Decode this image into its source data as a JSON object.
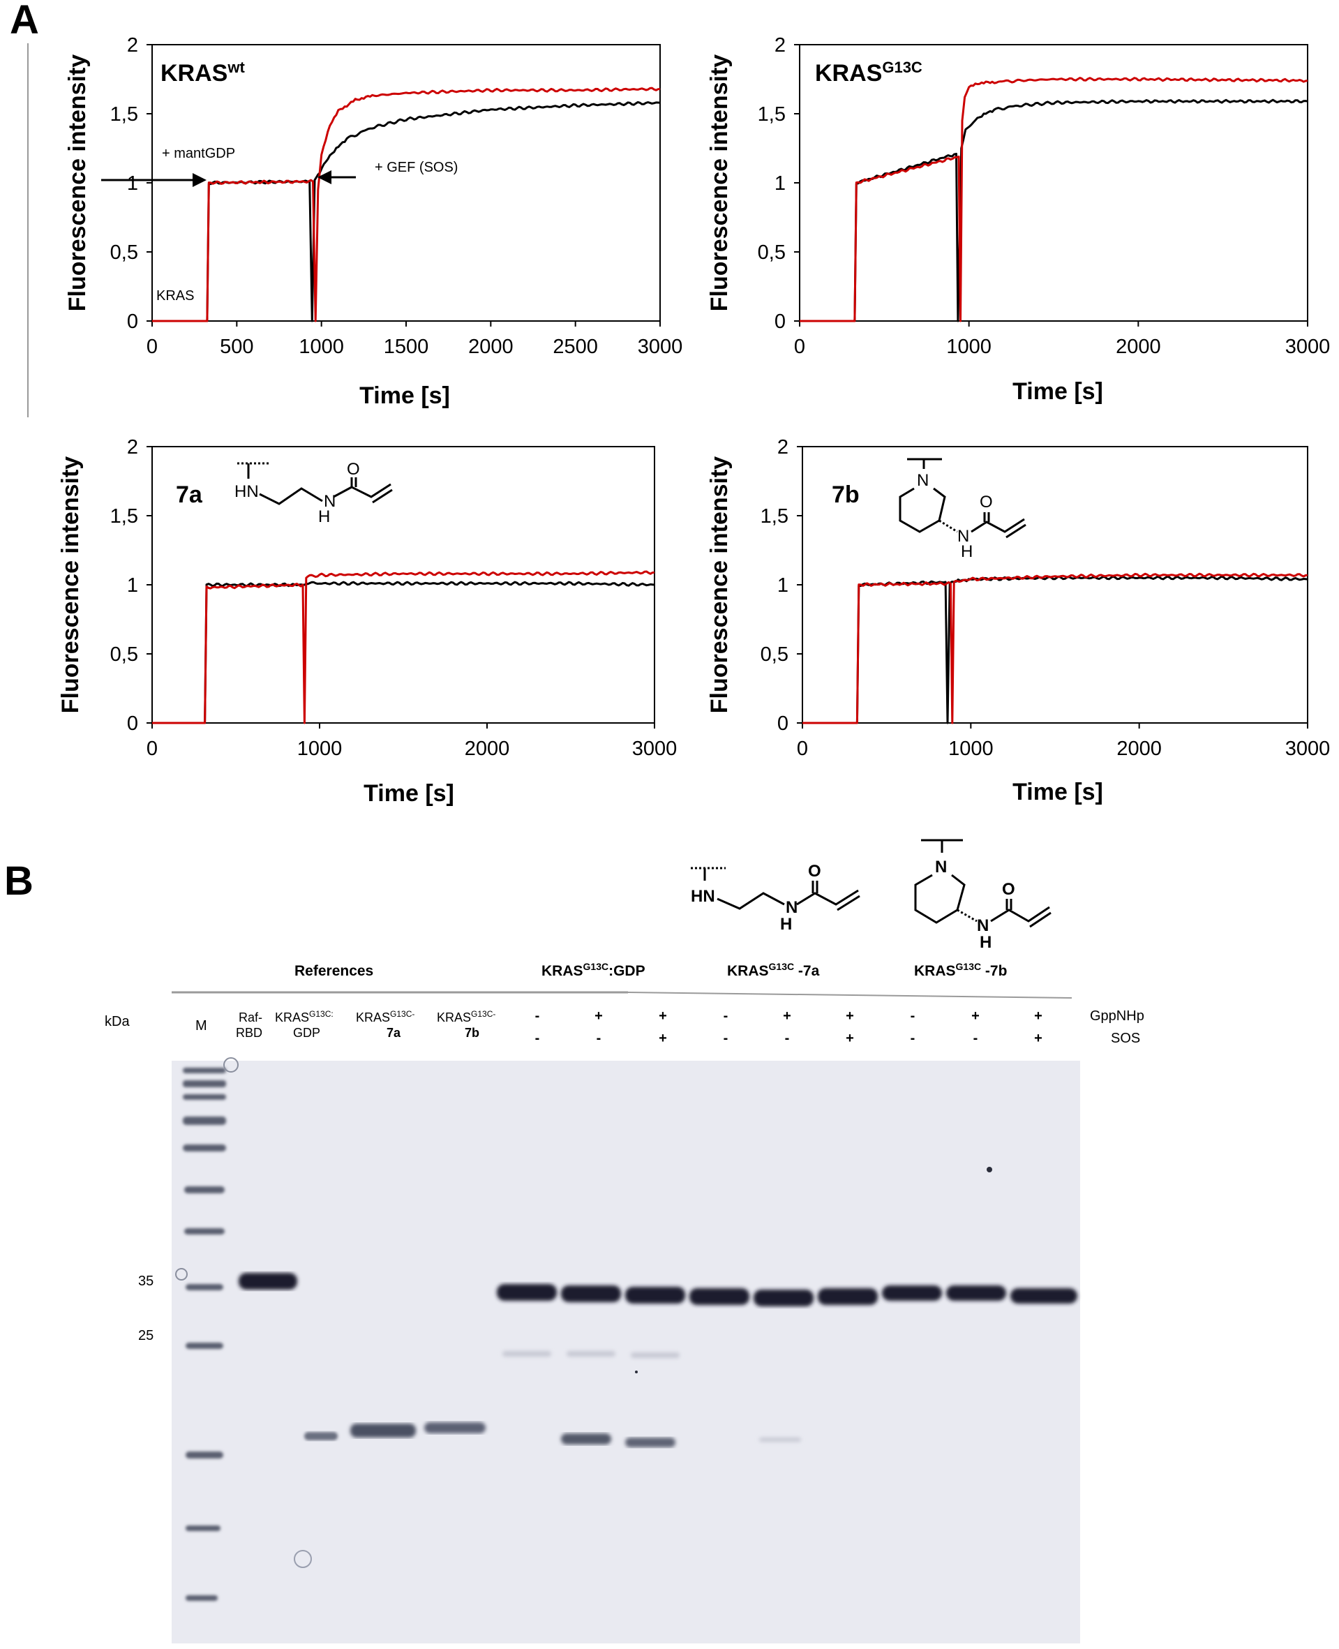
{
  "panel_a_label": "A",
  "panel_b_label": "B",
  "chart_data": [
    {
      "type": "line",
      "title": "KRAS",
      "title_sup": "wt",
      "xlabel": "Time [s]",
      "ylabel": "Fluorescence intensity",
      "xlim": [
        0,
        3000
      ],
      "ylim": [
        0,
        2
      ],
      "xticks": [
        "0",
        "500",
        "1000",
        "1500",
        "2000",
        "2500",
        "3000"
      ],
      "yticks": [
        "0",
        "0,5",
        "1",
        "1,5",
        "2"
      ],
      "annotations": [
        "+ mantGDP",
        "+ GEF (SOS)",
        "KRAS"
      ],
      "series": [
        {
          "color": "#cc0000",
          "x": [
            0,
            325,
            335,
            950,
            965,
            980,
            1000,
            1050,
            1100,
            1200,
            1300,
            1500,
            2000,
            2500,
            3000
          ],
          "y": [
            0,
            0,
            1.0,
            1.01,
            0,
            0.95,
            1.2,
            1.42,
            1.52,
            1.6,
            1.63,
            1.65,
            1.67,
            1.67,
            1.68
          ]
        },
        {
          "color": "#000000",
          "x": [
            0,
            325,
            335,
            930,
            945,
            960,
            990,
            1050,
            1150,
            1300,
            1500,
            2000,
            2500,
            3000
          ],
          "y": [
            0,
            0,
            1.0,
            1.01,
            0,
            1.02,
            1.08,
            1.2,
            1.32,
            1.4,
            1.46,
            1.53,
            1.56,
            1.58
          ]
        }
      ]
    },
    {
      "type": "line",
      "title": "KRAS",
      "title_sup": "G13C",
      "xlabel": "Time [s]",
      "ylabel": "Fluorescence intensity",
      "xlim": [
        0,
        3000
      ],
      "ylim": [
        0,
        2
      ],
      "xticks": [
        "0",
        "1000",
        "2000",
        "3000"
      ],
      "yticks": [
        "0",
        "0,5",
        "1",
        "1,5",
        "2"
      ],
      "series": [
        {
          "color": "#cc0000",
          "x": [
            0,
            325,
            335,
            940,
            950,
            960,
            975,
            1000,
            1050,
            1150,
            1300,
            1500,
            2000,
            3000
          ],
          "y": [
            0,
            0,
            1.0,
            1.19,
            0,
            1.45,
            1.62,
            1.69,
            1.72,
            1.73,
            1.74,
            1.75,
            1.75,
            1.74
          ]
        },
        {
          "color": "#000000",
          "x": [
            0,
            325,
            335,
            925,
            935,
            955,
            980,
            1050,
            1150,
            1300,
            1500,
            2000,
            3000
          ],
          "y": [
            0,
            0,
            1.0,
            1.21,
            0,
            1.25,
            1.38,
            1.47,
            1.53,
            1.56,
            1.58,
            1.59,
            1.59
          ]
        }
      ]
    },
    {
      "type": "line",
      "title": "7a",
      "xlabel": "Time [s]",
      "ylabel": "Fluorescence intensity",
      "xlim": [
        0,
        3000
      ],
      "ylim": [
        0,
        2
      ],
      "xticks": [
        "0",
        "1000",
        "2000",
        "3000"
      ],
      "yticks": [
        "0",
        "0,5",
        "1",
        "1,5",
        "2"
      ],
      "series": [
        {
          "color": "#cc0000",
          "x": [
            0,
            315,
            325,
            900,
            910,
            920,
            930,
            1000,
            1500,
            2000,
            2500,
            3000
          ],
          "y": [
            0,
            0,
            0.98,
            1.0,
            0,
            1.05,
            1.06,
            1.07,
            1.08,
            1.08,
            1.08,
            1.09
          ]
        },
        {
          "color": "#000000",
          "x": [
            0,
            315,
            325,
            900,
            910,
            920,
            1000,
            1500,
            2000,
            2500,
            3000
          ],
          "y": [
            0,
            0,
            1.0,
            1.0,
            1.0,
            1.01,
            1.01,
            1.01,
            1.01,
            1.01,
            1.0
          ]
        }
      ]
    },
    {
      "type": "line",
      "title": "7b",
      "xlabel": "Time [s]",
      "ylabel": "Fluorescence intensity",
      "xlim": [
        0,
        3000
      ],
      "ylim": [
        0,
        2
      ],
      "xticks": [
        "0",
        "1000",
        "2000",
        "3000"
      ],
      "yticks": [
        "0",
        "0,5",
        "1",
        "1,5",
        "2"
      ],
      "series": [
        {
          "color": "#cc0000",
          "x": [
            0,
            325,
            335,
            880,
            890,
            900,
            910,
            1000,
            1500,
            2000,
            2500,
            3000
          ],
          "y": [
            0,
            0,
            1.0,
            1.01,
            0,
            1.02,
            1.03,
            1.04,
            1.06,
            1.07,
            1.07,
            1.07
          ]
        },
        {
          "color": "#000000",
          "x": [
            0,
            325,
            335,
            850,
            862,
            875,
            1000,
            1500,
            2000,
            2500,
            3000
          ],
          "y": [
            0,
            0,
            1.0,
            1.02,
            0,
            1.02,
            1.04,
            1.05,
            1.05,
            1.05,
            1.04
          ]
        }
      ]
    }
  ],
  "structures": {
    "hn": "HN",
    "h": "H",
    "n": "N",
    "o": "O"
  },
  "gel": {
    "group_headers": [
      "References",
      "KRAS",
      "KRAS",
      "KRAS"
    ],
    "group_sups": [
      "",
      "G13C",
      "G13C",
      "G13C"
    ],
    "group_suffix": [
      "",
      ":GDP",
      " -7a",
      " -7b"
    ],
    "kda_label": "kDa",
    "marker_label": "M",
    "ref_lanes": [
      {
        "line1": "Raf-",
        "line2": "RBD",
        "sup": ""
      },
      {
        "line1": "KRAS",
        "sup": "G13C:",
        "line2": "GDP"
      },
      {
        "line1": "KRAS",
        "sup": "G13C-",
        "line2": "7a"
      },
      {
        "line1": "KRAS",
        "sup": "G13C-",
        "line2": "7b"
      }
    ],
    "gppnhp_row": [
      "-",
      "+",
      "+",
      "-",
      "+",
      "+",
      "-",
      "+",
      "+"
    ],
    "sos_row": [
      "-",
      "-",
      "+",
      "-",
      "-",
      "+",
      "-",
      "-",
      "+"
    ],
    "row_labels": [
      "GppNHp",
      "SOS"
    ],
    "mw_labels": [
      "35",
      "25"
    ]
  }
}
